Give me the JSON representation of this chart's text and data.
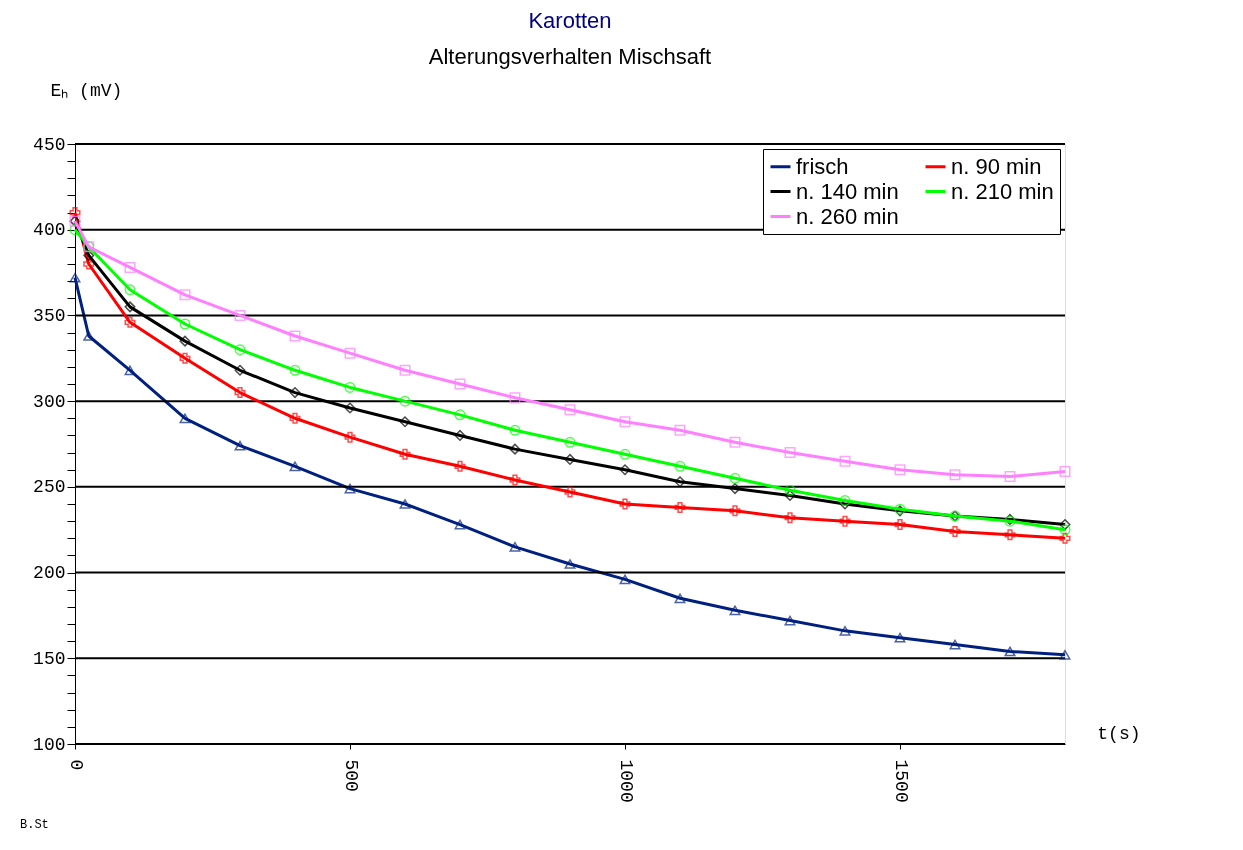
{
  "chart_data": {
    "type": "line",
    "title": "Karotten",
    "subtitle": "Alterungsverhalten Mischsaft",
    "xlabel": "t(s)",
    "ylabel": "Eₕ (mV)",
    "annotations": [
      "B.St"
    ],
    "xlim": [
      0,
      1800
    ],
    "xticks": [
      0,
      500,
      1000,
      1500
    ],
    "ylim": [
      100,
      450
    ],
    "yticks": [
      100,
      {
        "value": 110,
        "label": null
      },
      {
        "value": 120,
        "label": null
      },
      {
        "value": 130,
        "label": null
      },
      {
        "value": 140,
        "label": null
      },
      150,
      {
        "value": 160,
        "label": null
      },
      {
        "value": 170,
        "label": null
      },
      {
        "value": 180,
        "label": null
      },
      {
        "value": 190,
        "label": null
      },
      200,
      {
        "value": 210,
        "label": null
      },
      {
        "value": 220,
        "label": null
      },
      {
        "value": 230,
        "label": null
      },
      {
        "value": 240,
        "label": null
      },
      250,
      {
        "value": 260,
        "label": null
      },
      {
        "value": 270,
        "label": null
      },
      {
        "value": 280,
        "label": null
      },
      {
        "value": 290,
        "label": null
      },
      300,
      {
        "value": 310,
        "label": null
      },
      {
        "value": 320,
        "label": null
      },
      {
        "value": 330,
        "label": null
      },
      {
        "value": 340,
        "label": null
      },
      350,
      {
        "value": 360,
        "label": null
      },
      {
        "value": 370,
        "label": null
      },
      {
        "value": 380,
        "label": null
      },
      {
        "value": 390,
        "label": null
      },
      400,
      {
        "value": 410,
        "label": null
      },
      {
        "value": 420,
        "label": null
      },
      {
        "value": 430,
        "label": null
      },
      {
        "value": 440,
        "label": null
      },
      450
    ],
    "grid": "y",
    "legend": "top right",
    "line_style": "solid",
    "x": [
      0,
      25,
      100,
      200,
      300,
      400,
      500,
      600,
      700,
      800,
      900,
      1000,
      1100,
      1200,
      1300,
      1400,
      1500,
      1600,
      1700,
      1800
    ],
    "series": [
      {
        "name": "frisch",
        "color": "#002080",
        "marker": "triangle",
        "values": [
          372,
          338,
          318,
          290,
          274,
          262,
          249,
          240,
          228,
          215,
          205,
          196,
          185,
          178,
          172,
          166,
          162,
          158,
          154,
          152
        ]
      },
      {
        "name": "n. 90 min",
        "color": "#ff0000",
        "marker": "cross",
        "values": [
          410,
          380,
          346,
          325,
          305,
          290,
          279,
          269,
          262,
          254,
          247,
          240,
          238,
          236,
          232,
          230,
          228,
          224,
          222,
          220
        ]
      },
      {
        "name": "n. 140 min",
        "color": "#000000",
        "marker": "diamond",
        "values": [
          405,
          385,
          355,
          335,
          318,
          305,
          296,
          288,
          280,
          272,
          266,
          260,
          253,
          249,
          245,
          240,
          236,
          233,
          231,
          228
        ]
      },
      {
        "name": "n. 210 min",
        "color": "#00ff00",
        "marker": "circle",
        "values": [
          400,
          390,
          365,
          345,
          330,
          318,
          308,
          300,
          292,
          283,
          276,
          269,
          262,
          255,
          248,
          242,
          237,
          233,
          230,
          225
        ]
      },
      {
        "name": "n. 260 min",
        "color": "#ff80ff",
        "marker": "square",
        "values": [
          405,
          390,
          378,
          362,
          350,
          338,
          328,
          318,
          310,
          302,
          295,
          288,
          283,
          276,
          270,
          265,
          260,
          257,
          256,
          259
        ]
      }
    ]
  }
}
